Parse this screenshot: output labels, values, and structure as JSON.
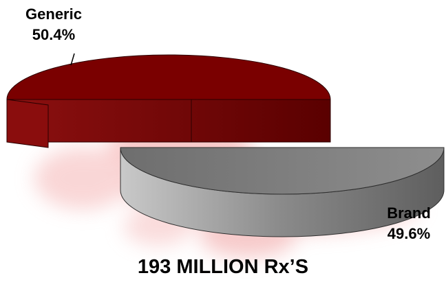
{
  "chart_data": {
    "type": "pie",
    "categories": [
      "Generic",
      "Brand"
    ],
    "values": [
      50.4,
      49.6
    ],
    "value_labels": [
      "50.4%",
      "49.6%"
    ],
    "title": "193 MILLION Rx’S",
    "colors": [
      "#7a0000",
      "#7d7d7d"
    ],
    "style": "3d-exploded",
    "legend": "none"
  }
}
